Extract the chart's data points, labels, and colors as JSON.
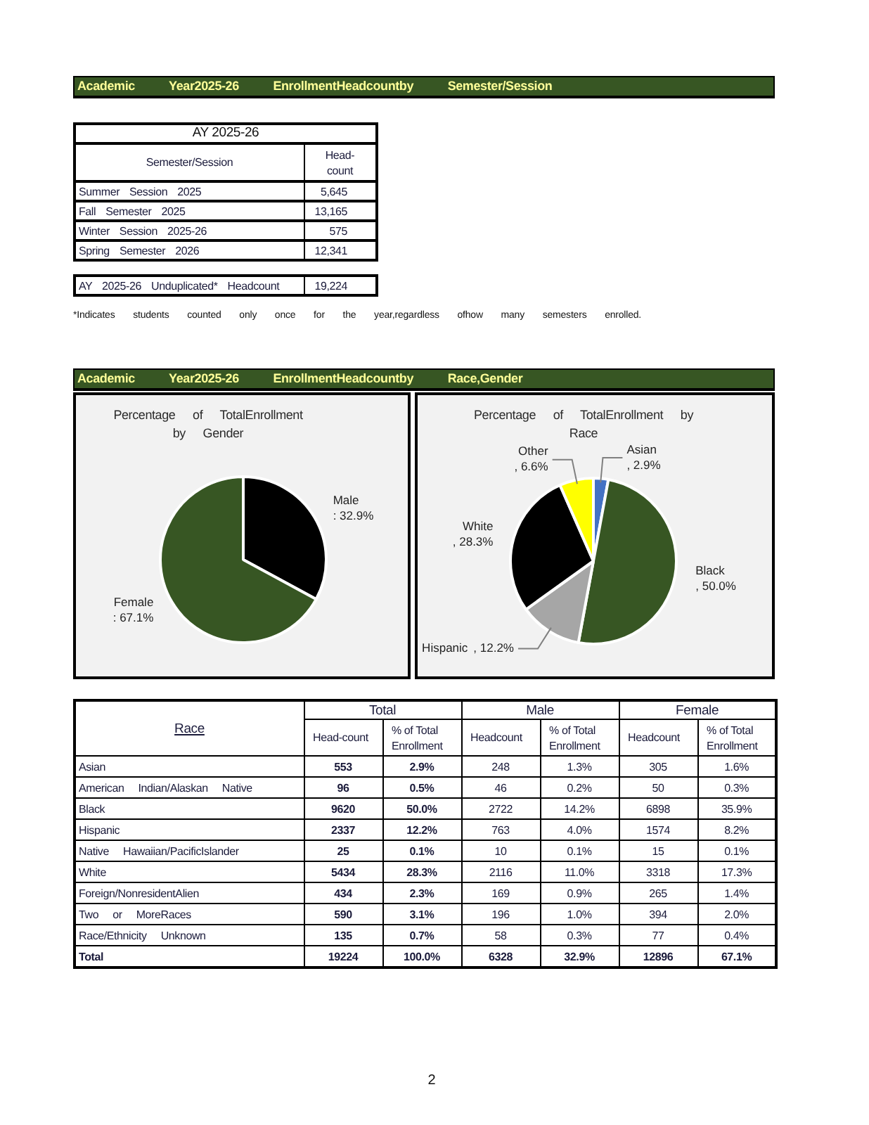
{
  "chart_data": [
    {
      "type": "other",
      "title": "Academic Year2025-26 EnrollmentHeadcountby Semester/Session",
      "subtitle": "AY 2025-26",
      "ylabel": "Semester/Session",
      "categories": [
        "Head-count"
      ],
      "y_categories": [
        "Summer Session 2025",
        "Fall Semester 2025",
        "Winter Session 2025-26",
        "Spring Semester 2026"
      ],
      "cell_labels": [
        [
          "5,645"
        ],
        [
          "13,165"
        ],
        [
          "575"
        ],
        [
          "12,341"
        ]
      ]
    },
    {
      "type": "other",
      "y_categories": [
        "AY 2025-26 Unduplicated* Headcount"
      ],
      "cell_labels": [
        [
          "19,224"
        ]
      ],
      "annotations": [
        "*Indicates students counted only once for the year,regardless ofhow many semesters enrolled."
      ]
    },
    {
      "type": "other",
      "title": "Academic Year2025-26 EnrollmentHeadcountby Race,Gender"
    },
    {
      "type": "pie",
      "title": "Percentage of TotalEnrollment by Gender",
      "categories": [
        "Male",
        "Female"
      ],
      "values": [
        32.9,
        67.1
      ],
      "colors": [
        "#000000",
        "#375623"
      ],
      "value_labels": [
        ": 32.9%",
        ": 67.1%"
      ]
    },
    {
      "type": "pie",
      "title": "Percentage of TotalEnrollment by Race",
      "categories": [
        "Asian",
        "Black",
        "Hispanic",
        "White",
        "Other"
      ],
      "values": [
        2.9,
        50.0,
        12.2,
        28.3,
        6.6
      ],
      "colors": [
        "#4472c4",
        "#375623",
        "#a6a6a6",
        "#000000",
        "#ffff00"
      ],
      "value_labels": [
        ", 2.9%",
        ", 50.0%",
        ", 12.2%",
        ", 28.3%",
        ", 6.6%"
      ]
    },
    {
      "type": "other",
      "ylabel": "Race",
      "categories": [
        "Total",
        "Male",
        "Female"
      ],
      "y_categories": [
        null,
        "Asian",
        "American Indian/Alaskan Native",
        "Black",
        "Hispanic",
        "Native Hawaiian/PacificIslander",
        "White",
        "Foreign/NonresidentAlien",
        "Two or MoreRaces",
        "Race/Ethnicity Unknown",
        "Total"
      ],
      "cell_labels": [
        [
          "Head-count",
          "% of Total Enrollment",
          "Headcount",
          "% of Total Enrollment",
          "Headcount",
          "% of Total Enrollment"
        ],
        [
          "553",
          "2.9%",
          "248",
          "1.3%",
          "305",
          "1.6%"
        ],
        [
          "96",
          "0.5%",
          "46",
          "0.2%",
          "50",
          "0.3%"
        ],
        [
          "9620",
          "50.0%",
          "2722",
          "14.2%",
          "6898",
          "35.9%"
        ],
        [
          "2337",
          "12.2%",
          "763",
          "4.0%",
          "1574",
          "8.2%"
        ],
        [
          "25",
          "0.1%",
          "10",
          "0.1%",
          "15",
          "0.1%"
        ],
        [
          "5434",
          "28.3%",
          "2116",
          "11.0%",
          "3318",
          "17.3%"
        ],
        [
          "434",
          "2.3%",
          "169",
          "0.9%",
          "265",
          "1.4%"
        ],
        [
          "590",
          "3.1%",
          "196",
          "1.0%",
          "394",
          "2.0%"
        ],
        [
          "135",
          "0.7%",
          "58",
          "0.3%",
          "77",
          "0.4%"
        ],
        [
          "19224",
          "100.0%",
          "6328",
          "32.9%",
          "12896",
          "67.1%"
        ]
      ],
      "annotations": [
        "2"
      ]
    }
  ]
}
